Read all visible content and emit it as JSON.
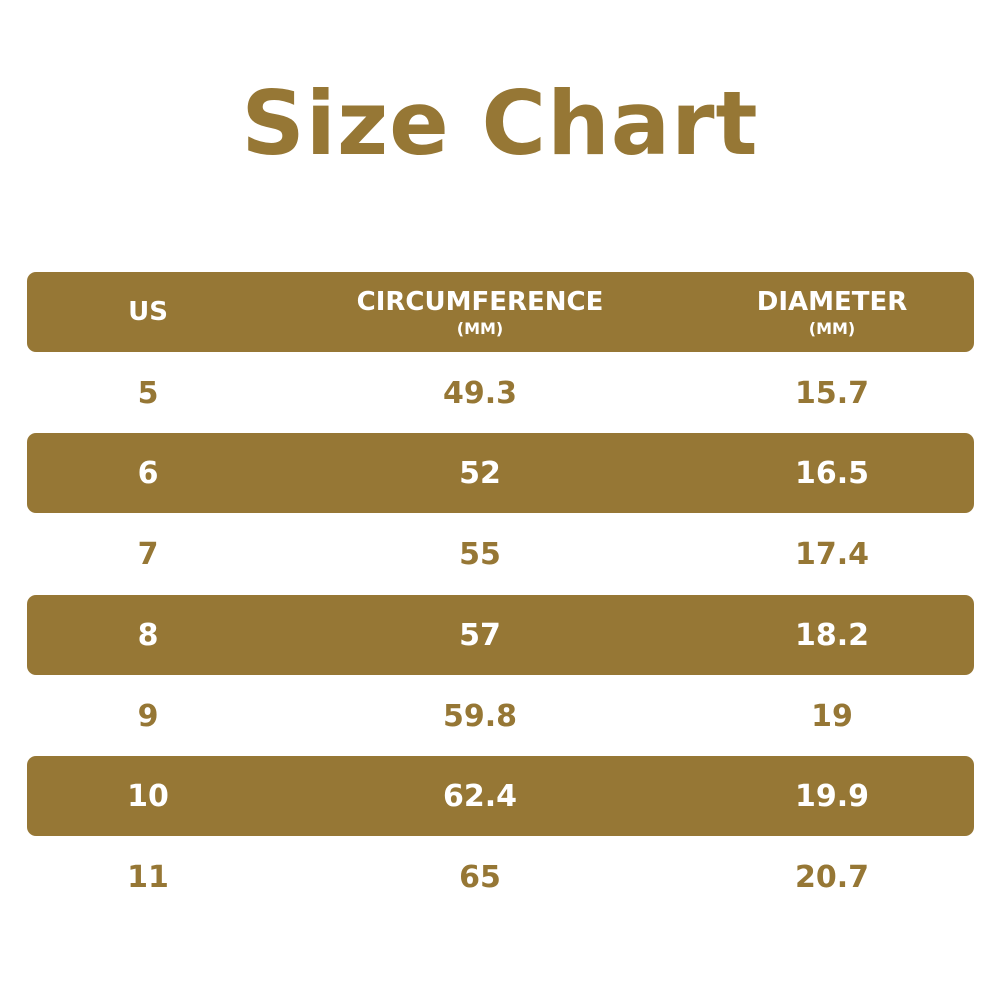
{
  "title": "Size Chart",
  "colors": {
    "accent": "#967735",
    "background": "#ffffff",
    "band_text": "#ffffff"
  },
  "header": [
    {
      "label": "US",
      "unit": ""
    },
    {
      "label": "CIRCUMFERENCE",
      "unit": "(MM)"
    },
    {
      "label": "DIAMETER",
      "unit": "(MM)"
    }
  ],
  "rows": [
    [
      "5",
      "49.3",
      "15.7"
    ],
    [
      "6",
      "52",
      "16.5"
    ],
    [
      "7",
      "55",
      "17.4"
    ],
    [
      "8",
      "57",
      "18.2"
    ],
    [
      "9",
      "59.8",
      "19"
    ],
    [
      "10",
      "62.4",
      "19.9"
    ],
    [
      "11",
      "65",
      "20.7"
    ]
  ]
}
